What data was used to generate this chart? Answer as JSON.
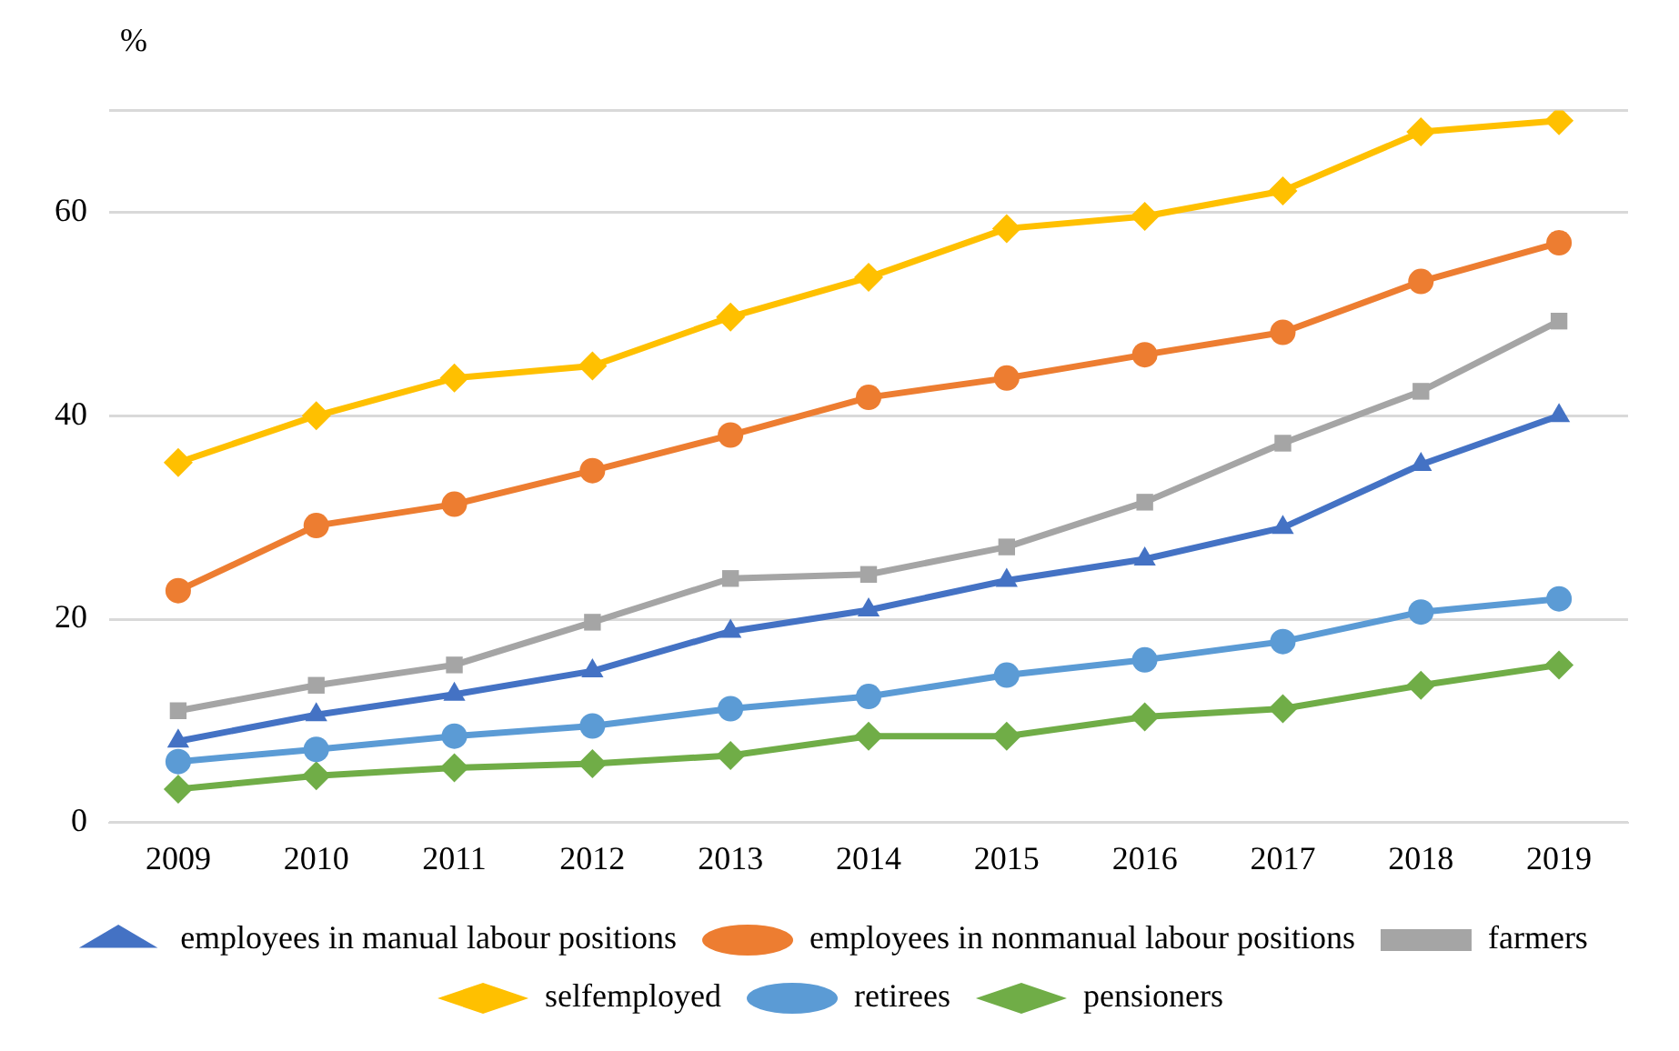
{
  "chart_data": {
    "type": "line",
    "ylabel": "%",
    "categories": [
      "2009",
      "2010",
      "2011",
      "2012",
      "2013",
      "2014",
      "2015",
      "2016",
      "2017",
      "2018",
      "2019"
    ],
    "series": [
      {
        "name": "employees in manual labour positions",
        "color": "#4472c4",
        "marker": "triangle",
        "values": [
          8,
          10.6,
          12.6,
          14.9,
          18.8,
          20.9,
          23.8,
          25.9,
          29,
          35.2,
          40
        ]
      },
      {
        "name": "employees in nonmanual labour positions",
        "color": "#ed7d31",
        "marker": "circle",
        "values": [
          22.8,
          29.2,
          31.3,
          34.6,
          38.1,
          41.8,
          43.7,
          46,
          48.2,
          53.2,
          57
        ]
      },
      {
        "name": "farmers",
        "color": "#a5a5a5",
        "marker": "square",
        "values": [
          11,
          13.5,
          15.5,
          19.7,
          24,
          24.4,
          27.1,
          31.5,
          37.3,
          42.4,
          49.3
        ]
      },
      {
        "name": "selfemployed",
        "color": "#ffc000",
        "marker": "diamond",
        "values": [
          35.4,
          40,
          43.7,
          44.9,
          49.7,
          53.6,
          58.4,
          59.6,
          62.1,
          67.9,
          69
        ]
      },
      {
        "name": "retirees",
        "color": "#5b9bd5",
        "marker": "circle",
        "values": [
          6,
          7.2,
          8.5,
          9.5,
          11.2,
          12.4,
          14.5,
          16,
          17.8,
          20.7,
          22
        ]
      },
      {
        "name": "pensioners",
        "color": "#70ad47",
        "marker": "diamond",
        "values": [
          3.3,
          4.6,
          5.4,
          5.8,
          6.6,
          8.5,
          8.5,
          10.4,
          11.2,
          13.5,
          15.5
        ]
      }
    ],
    "ylim": [
      0,
      70
    ],
    "yticks": [
      0,
      20,
      40,
      60,
      {
        "value": 70,
        "label": null
      }
    ],
    "grid": "y",
    "legend": "bottom"
  }
}
